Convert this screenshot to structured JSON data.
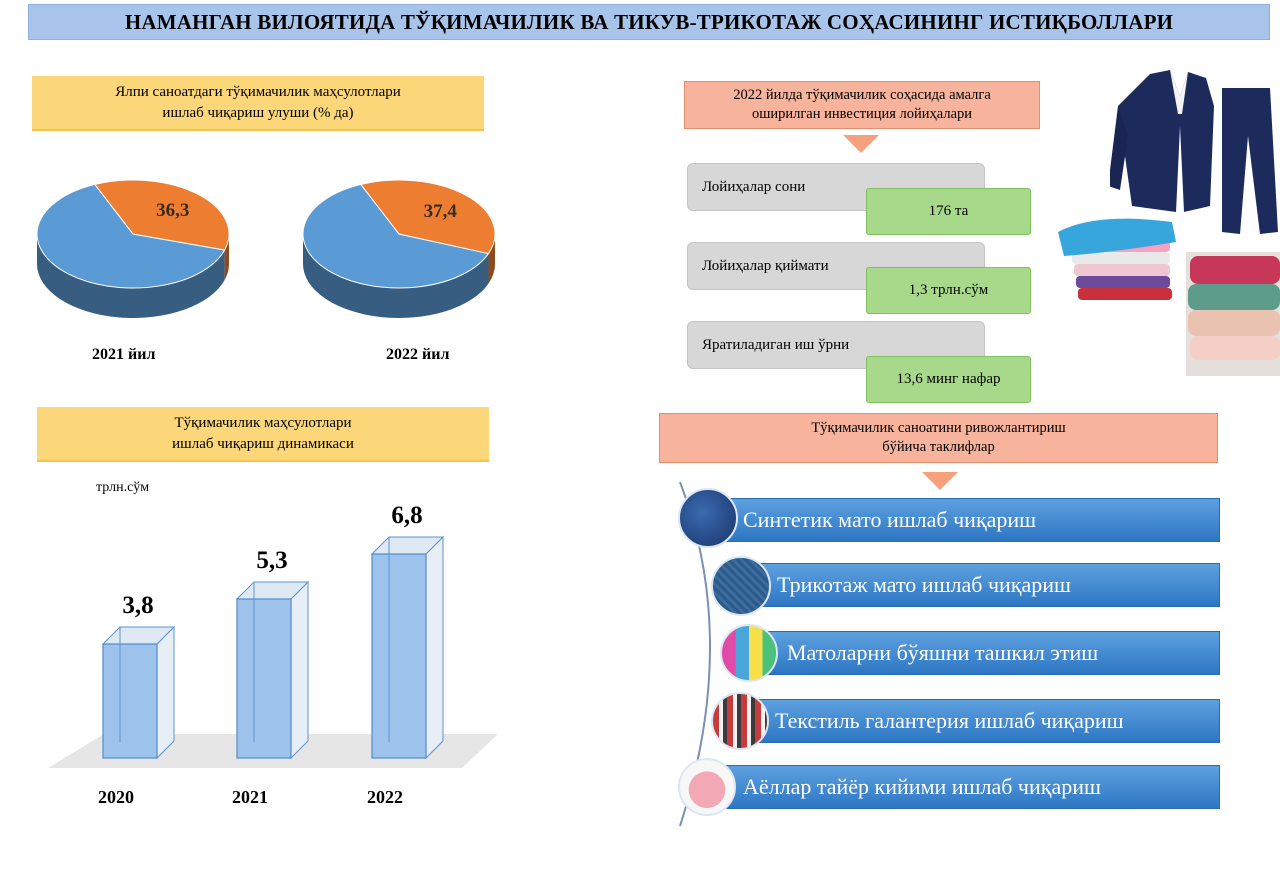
{
  "title": "НАМАНГАН ВИЛОЯТИДА ТЎҚИМАЧИЛИК ВА ТИКУВ-ТРИКОТАЖ СОҲАСИНИНГ ИСТИҚБОЛЛАРИ",
  "share_box": {
    "line1": "Ялпи саноатдаги тўқимачилик маҳсулотлари",
    "line2": "ишлаб чиқариш улуши (% да)"
  },
  "dynamics_box": {
    "line1": "Тўқимачилик маҳсулотлари",
    "line2": "ишлаб чиқариш динамикаси"
  },
  "invest_box": {
    "line1": "2022 йилда тўқимачилик соҳасида амалга",
    "line2": "оширилган инвестиция лойиҳалари"
  },
  "invest_items": [
    {
      "label": "Лойиҳалар сони",
      "value": "176 та"
    },
    {
      "label": "Лойиҳалар қиймати",
      "value": "1,3 трлн.сўм"
    },
    {
      "label": "Яратиладиган иш ўрни",
      "value": "13,6 минг нафар"
    }
  ],
  "proposals_box": {
    "line1": "Тўқимачилик саноатини ривожлантириш",
    "line2": "бўйича таклифлар"
  },
  "proposals": [
    {
      "label": "Синтетик мато ишлаб чиқариш",
      "icon": "blue-fabric-icon"
    },
    {
      "label": "Трикотаж мато ишлаб чиқариш",
      "icon": "knit-fabric-icon"
    },
    {
      "label": "Матоларни бўяшни ташкил этиш",
      "icon": "dyed-fabric-icon"
    },
    {
      "label": "Текстиль галантерия ишлаб чиқариш",
      "icon": "haberdashery-icon"
    },
    {
      "label": "Аёллар тайёр кийими ишлаб чиқариш",
      "icon": "blouse-icon"
    }
  ],
  "colors": {
    "pie_blue": "#5b9bd5",
    "pie_orange": "#ed7d31",
    "bar_fill": "#9dc3ec",
    "title_bg": "#a9c4ea",
    "yellow": "#fcd77a",
    "salmon": "#f7b39b",
    "green": "#a8d98a",
    "proposal_blue": "#2d76c3"
  },
  "chart_data": [
    {
      "type": "pie",
      "label": "2021 йил",
      "slices": [
        {
          "value": 63.7,
          "color": "#5b9bd5"
        },
        {
          "value": 36.3,
          "label": "36,3",
          "color": "#ed7d31"
        }
      ]
    },
    {
      "type": "pie",
      "label": "2022 йил",
      "slices": [
        {
          "value": 62.6,
          "color": "#5b9bd5"
        },
        {
          "value": 37.4,
          "label": "37,4",
          "color": "#ed7d31"
        }
      ]
    },
    {
      "type": "bar",
      "unit": "трлн.сўм",
      "categories": [
        "2020",
        "2021",
        "2022"
      ],
      "values": [
        3.8,
        5.3,
        6.8
      ],
      "value_labels": [
        "3,8",
        "5,3",
        "6,8"
      ]
    }
  ]
}
